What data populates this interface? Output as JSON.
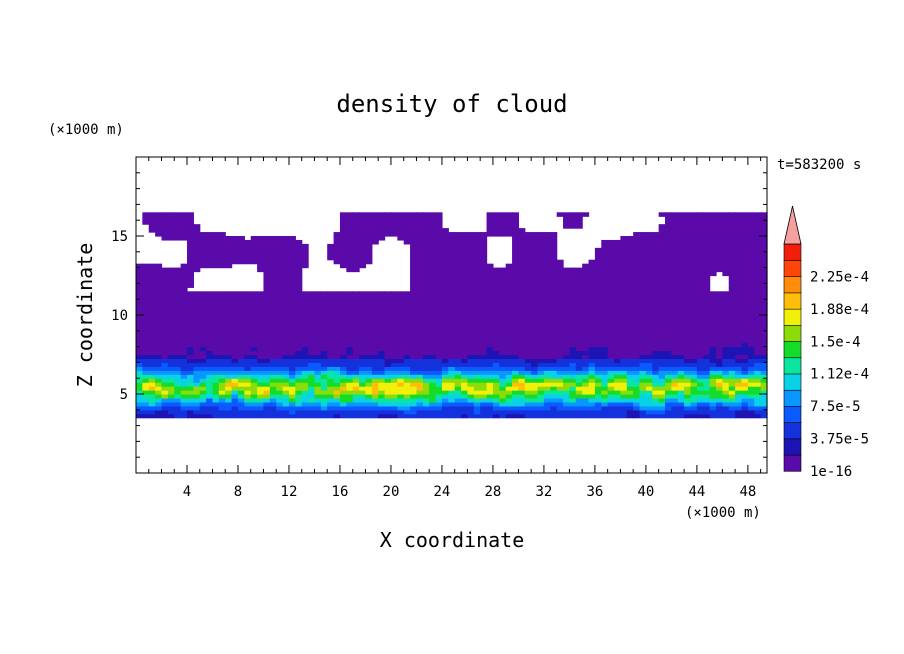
{
  "chart_data": {
    "type": "heatmap",
    "title": "density of cloud",
    "xlabel": "X coordinate",
    "ylabel": "Z coordinate",
    "x_unit": "(×1000 m)",
    "y_unit": "(×1000 m)",
    "time_label": "t=583200 s",
    "xlim": [
      0,
      49.5
    ],
    "ylim": [
      0,
      20
    ],
    "x_ticks": [
      4,
      8,
      12,
      16,
      20,
      24,
      28,
      32,
      36,
      40,
      44,
      48
    ],
    "y_ticks": [
      5,
      10,
      15
    ],
    "colorbar": {
      "labels": [
        "1e-16",
        "3.75e-5",
        "7.5e-5",
        "1.12e-4",
        "1.5e-4",
        "1.88e-4",
        "2.25e-4"
      ],
      "levels": [
        1e-16,
        1.88e-05,
        3.75e-05,
        5.63e-05,
        7.5e-05,
        9.38e-05,
        0.0001125,
        0.0001313,
        0.00015,
        0.0001688,
        0.0001875,
        0.0002063,
        0.000225,
        0.0002438
      ],
      "colors": [
        "#5a0aa8",
        "#1e14b4",
        "#1432dc",
        "#0a5aff",
        "#0a96ff",
        "#0ad2e6",
        "#0ae6a0",
        "#14dc28",
        "#8cdc0a",
        "#f0f00a",
        "#ffbe0a",
        "#ff8c0a",
        "#ff460a",
        "#f01e0a"
      ],
      "extend_color": "#f4a0a0"
    },
    "cloud_layers": [
      {
        "name_hint": "band",
        "z_range": [
          3.5,
          7.2
        ],
        "peak_value": 0.00018
      },
      {
        "name_hint": "thin-mid",
        "z_range": [
          7.2,
          12.0
        ],
        "peak_value": 3e-05
      },
      {
        "name_hint": "upper",
        "z_range": [
          12.0,
          17.0
        ],
        "peak_value": 1e-05
      }
    ]
  }
}
